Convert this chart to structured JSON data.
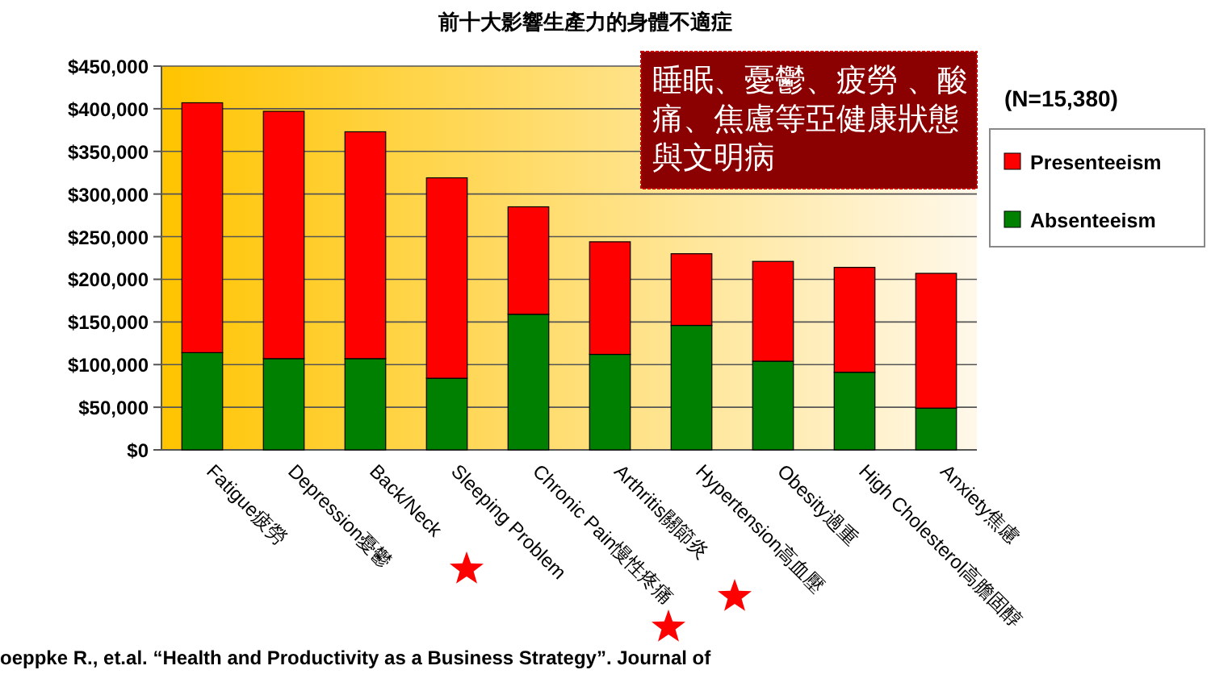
{
  "chart_data": {
    "type": "bar",
    "stacked": true,
    "title": "前十大影響生產力的身體不適症",
    "categories": [
      "Fatigue疲勞",
      "Depression憂鬱",
      "Back/Neck",
      "Sleeping Problem",
      "Chronic Pain慢性疼痛",
      "Arthritis關節炎",
      "Hypertension高血壓",
      "Obesity過重",
      "High Cholesterol高膽固醇",
      "Anxiety焦慮"
    ],
    "series": [
      {
        "name": "Absenteeism",
        "color": "#008000",
        "values": [
          114000,
          107000,
          107000,
          84000,
          159000,
          112000,
          146000,
          104000,
          91000,
          49000
        ]
      },
      {
        "name": "Presenteeism",
        "color": "#ff0000",
        "values": [
          293000,
          290000,
          266000,
          235000,
          126000,
          132000,
          84000,
          117000,
          123000,
          158000
        ]
      }
    ],
    "ylim": [
      0,
      450000
    ],
    "yticks": [
      {
        "value": 0,
        "label": "$0"
      },
      {
        "value": 50000,
        "label": "$50,000"
      },
      {
        "value": 100000,
        "label": "$100,000"
      },
      {
        "value": 150000,
        "label": "$150,000"
      },
      {
        "value": 200000,
        "label": "$200,000"
      },
      {
        "value": 250000,
        "label": "$250,000"
      },
      {
        "value": 300000,
        "label": "$300,000"
      },
      {
        "value": 350000,
        "label": "$350,000"
      },
      {
        "value": 400000,
        "label": "$400,000"
      },
      {
        "value": 450000,
        "label": "$450,000"
      }
    ],
    "grid": "y",
    "legend": "right",
    "annotations": [
      "睡眠、憂鬱、疲勞 、酸痛、焦慮等亞健康狀態與文明病",
      "(N=15,380)",
      "oeppke R., et.al. “Health and Productivity as a Business Strategy”. Journal of"
    ]
  }
}
